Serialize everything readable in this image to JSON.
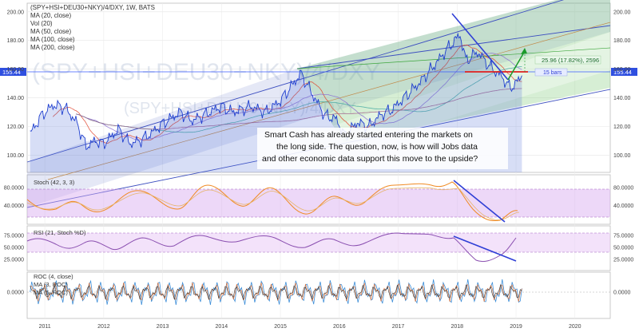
{
  "chart_data": {
    "type": "line",
    "main": {
      "title": "(SPY+HSI+DEU30+NKY)/4/DXY, 1W, BATS",
      "legend": [
        "MA (20, close)",
        "Vol (20)",
        "MA (50, close)",
        "MA (100, close)",
        "MA (200, close)"
      ],
      "watermark": "(SPY+HSI+DEU30+NKY)/4/DXY",
      "last_value": "155.44",
      "y_ticks": [
        {
          "v": 200,
          "label": "200.00"
        },
        {
          "v": 180,
          "label": "180.00"
        },
        {
          "v": 160,
          "label": "160.00"
        },
        {
          "v": 140,
          "label": "140.00"
        },
        {
          "v": 120,
          "label": "120.00"
        },
        {
          "v": 100,
          "label": "100.00"
        }
      ],
      "ylim": [
        88,
        206
      ],
      "series": [
        {
          "values": [
            {
              "x": 2010.75,
              "y": 115
            },
            {
              "x": 2010.95,
              "y": 128
            },
            {
              "x": 2011.15,
              "y": 135
            },
            {
              "x": 2011.35,
              "y": 133
            },
            {
              "x": 2011.55,
              "y": 122
            },
            {
              "x": 2011.7,
              "y": 106
            },
            {
              "x": 2011.85,
              "y": 110
            },
            {
              "x": 2012.0,
              "y": 108
            },
            {
              "x": 2012.25,
              "y": 118
            },
            {
              "x": 2012.45,
              "y": 108
            },
            {
              "x": 2012.6,
              "y": 110
            },
            {
              "x": 2012.8,
              "y": 115
            },
            {
              "x": 2013.0,
              "y": 122
            },
            {
              "x": 2013.3,
              "y": 130
            },
            {
              "x": 2013.5,
              "y": 124
            },
            {
              "x": 2013.8,
              "y": 130
            },
            {
              "x": 2014.0,
              "y": 134
            },
            {
              "x": 2014.2,
              "y": 130
            },
            {
              "x": 2014.5,
              "y": 134
            },
            {
              "x": 2014.75,
              "y": 130
            },
            {
              "x": 2015.0,
              "y": 138
            },
            {
              "x": 2015.35,
              "y": 157
            },
            {
              "x": 2015.55,
              "y": 142
            },
            {
              "x": 2015.75,
              "y": 128
            },
            {
              "x": 2015.95,
              "y": 125
            },
            {
              "x": 2016.1,
              "y": 113
            },
            {
              "x": 2016.3,
              "y": 123
            },
            {
              "x": 2016.5,
              "y": 120
            },
            {
              "x": 2016.7,
              "y": 128
            },
            {
              "x": 2016.9,
              "y": 132
            },
            {
              "x": 2017.1,
              "y": 140
            },
            {
              "x": 2017.35,
              "y": 150
            },
            {
              "x": 2017.6,
              "y": 162
            },
            {
              "x": 2017.85,
              "y": 175
            },
            {
              "x": 2018.05,
              "y": 184
            },
            {
              "x": 2018.15,
              "y": 166
            },
            {
              "x": 2018.35,
              "y": 172
            },
            {
              "x": 2018.55,
              "y": 162
            },
            {
              "x": 2018.75,
              "y": 155
            },
            {
              "x": 2018.9,
              "y": 147
            },
            {
              "x": 2019.0,
              "y": 150
            },
            {
              "x": 2019.1,
              "y": 156
            }
          ]
        }
      ],
      "annotation_lines": [
        "Smart Cash has already started entering the markets on",
        "the long side.  The question, now, is how will Jobs data",
        "and other economic data support this move to the upside?"
      ],
      "measure_label": "25.96 (17.82%), 2596",
      "bars_label": "15 bars"
    },
    "x_axis": {
      "ticks": [
        {
          "v": 2011,
          "label": "2011"
        },
        {
          "v": 2012,
          "label": "2012"
        },
        {
          "v": 2013,
          "label": "2013"
        },
        {
          "v": 2014,
          "label": "2014"
        },
        {
          "v": 2015,
          "label": "2015"
        },
        {
          "v": 2016,
          "label": "2016"
        },
        {
          "v": 2017,
          "label": "2017"
        },
        {
          "v": 2018,
          "label": "2018"
        },
        {
          "v": 2019,
          "label": "2019"
        },
        {
          "v": 2020,
          "label": "2020"
        }
      ]
    },
    "stoch": {
      "title": "Stoch (42, 3, 3)",
      "y_ticks": [
        {
          "v": 80,
          "label": "80.0000"
        },
        {
          "v": 40,
          "label": "40.0000"
        }
      ],
      "band": [
        20,
        80
      ]
    },
    "rsi": {
      "title": "RSI (21, Stoch %D)",
      "y_ticks": [
        {
          "v": 75,
          "label": "75.0000"
        },
        {
          "v": 50,
          "label": "50.0000"
        },
        {
          "v": 25,
          "label": "25.0000"
        }
      ],
      "band": [
        30,
        70
      ]
    },
    "roc": {
      "title": "ROC (4, close)",
      "legend": [
        "MA (3, ROC)",
        "MA (5, ROC)"
      ],
      "y_ticks": [
        {
          "v": 0,
          "label": "0.0000"
        }
      ]
    }
  }
}
